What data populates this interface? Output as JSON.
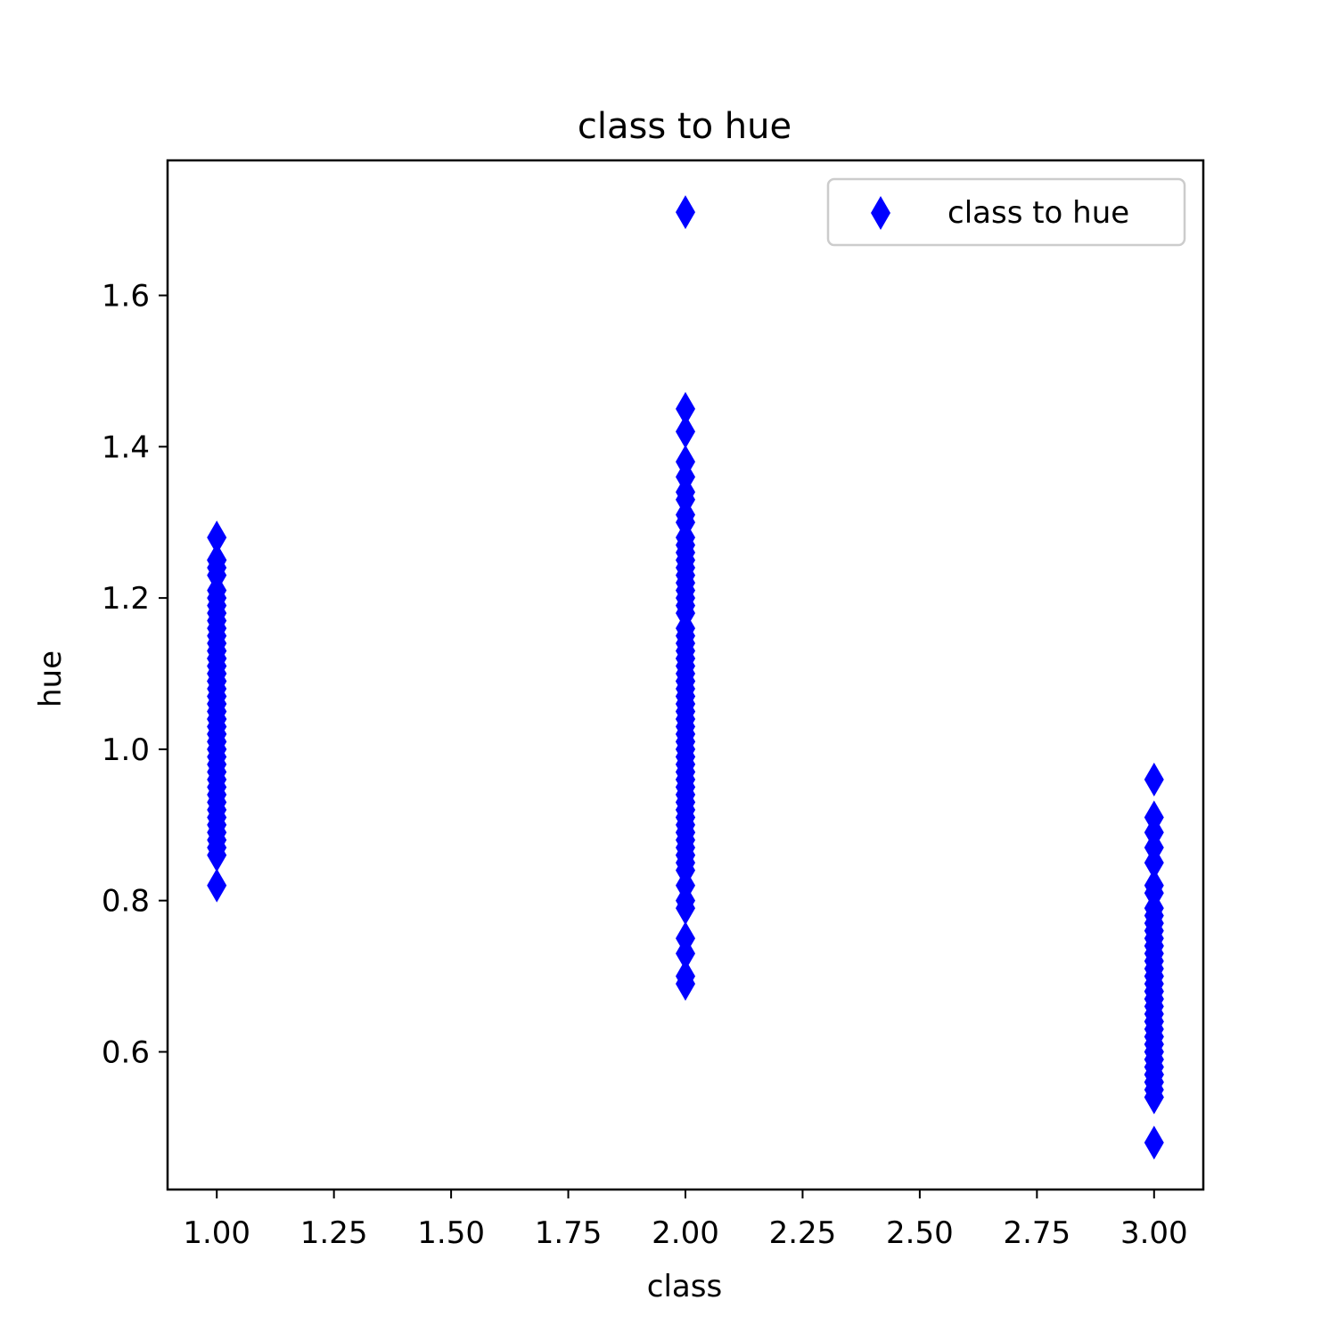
{
  "chart_data": {
    "type": "scatter",
    "title": "class to hue",
    "xlabel": "class",
    "ylabel": "hue",
    "xlim": [
      0.895,
      3.105
    ],
    "ylim": [
      0.418,
      1.7785
    ],
    "x_ticks": [
      1.0,
      1.25,
      1.5,
      1.75,
      2.0,
      2.25,
      2.5,
      2.75,
      3.0
    ],
    "x_tick_labels": [
      "1.00",
      "1.25",
      "1.50",
      "1.75",
      "2.00",
      "2.25",
      "2.50",
      "2.75",
      "3.00"
    ],
    "y_ticks": [
      0.6,
      0.8,
      1.0,
      1.2,
      1.4,
      1.6
    ],
    "y_tick_labels": [
      "0.6",
      "0.8",
      "1.0",
      "1.2",
      "1.4",
      "1.6"
    ],
    "grid": false,
    "legend_position": "top-right",
    "marker": "thin-diamond",
    "color": "#0000ff",
    "series": [
      {
        "name": "class to hue",
        "points": [
          [
            1,
            1.04
          ],
          [
            1,
            1.05
          ],
          [
            1,
            1.03
          ],
          [
            1,
            0.86
          ],
          [
            1,
            1.04
          ],
          [
            1,
            1.05
          ],
          [
            1,
            1.02
          ],
          [
            1,
            1.06
          ],
          [
            1,
            1.08
          ],
          [
            1,
            1.01
          ],
          [
            1,
            1.25
          ],
          [
            1,
            1.17
          ],
          [
            1,
            1.15
          ],
          [
            1,
            1.25
          ],
          [
            1,
            1.2
          ],
          [
            1,
            1.28
          ],
          [
            1,
            1.07
          ],
          [
            1,
            1.13
          ],
          [
            1,
            1.23
          ],
          [
            1,
            0.96
          ],
          [
            1,
            1.09
          ],
          [
            1,
            1.11
          ],
          [
            1,
            1.09
          ],
          [
            1,
            1.12
          ],
          [
            1,
            1.13
          ],
          [
            1,
            0.92
          ],
          [
            1,
            1.02
          ],
          [
            1,
            1.25
          ],
          [
            1,
            1.1
          ],
          [
            1,
            1.04
          ],
          [
            1,
            1.09
          ],
          [
            1,
            1.12
          ],
          [
            1,
            1.0
          ],
          [
            1,
            1.18
          ],
          [
            1,
            0.89
          ],
          [
            1,
            0.95
          ],
          [
            1,
            0.91
          ],
          [
            1,
            0.88
          ],
          [
            1,
            0.82
          ],
          [
            1,
            1.16
          ],
          [
            1,
            0.87
          ],
          [
            1,
            0.93
          ],
          [
            1,
            0.98
          ],
          [
            1,
            1.19
          ],
          [
            1,
            1.12
          ],
          [
            1,
            1.03
          ],
          [
            1,
            1.01
          ],
          [
            1,
            0.9
          ],
          [
            1,
            0.94
          ],
          [
            1,
            1.07
          ],
          [
            1,
            1.1
          ],
          [
            1,
            1.14
          ],
          [
            1,
            1.21
          ],
          [
            1,
            0.99
          ],
          [
            1,
            1.24
          ],
          [
            1,
            0.97
          ],
          [
            1,
            1.06
          ],
          [
            1,
            1.0
          ],
          [
            1,
            1.11
          ],
          [
            2,
            1.05
          ],
          [
            2,
            1.45
          ],
          [
            2,
            1.25
          ],
          [
            2,
            1.0
          ],
          [
            2,
            1.12
          ],
          [
            2,
            0.94
          ],
          [
            2,
            1.42
          ],
          [
            2,
            1.36
          ],
          [
            2,
            1.38
          ],
          [
            2,
            0.7
          ],
          [
            2,
            0.73
          ],
          [
            2,
            1.71
          ],
          [
            2,
            1.31
          ],
          [
            2,
            1.22
          ],
          [
            2,
            1.02
          ],
          [
            2,
            0.96
          ],
          [
            2,
            1.04
          ],
          [
            2,
            0.98
          ],
          [
            2,
            0.86
          ],
          [
            2,
            1.12
          ],
          [
            2,
            0.93
          ],
          [
            2,
            0.91
          ],
          [
            2,
            1.28
          ],
          [
            2,
            0.79
          ],
          [
            2,
            1.19
          ],
          [
            2,
            0.87
          ],
          [
            2,
            1.16
          ],
          [
            2,
            0.89
          ],
          [
            2,
            1.07
          ],
          [
            2,
            1.2
          ],
          [
            2,
            1.06
          ],
          [
            2,
            0.98
          ],
          [
            2,
            1.23
          ],
          [
            2,
            1.33
          ],
          [
            2,
            0.69
          ],
          [
            2,
            1.09
          ],
          [
            2,
            0.97
          ],
          [
            2,
            0.82
          ],
          [
            2,
            0.8
          ],
          [
            2,
            1.02
          ],
          [
            2,
            0.75
          ],
          [
            2,
            0.84
          ],
          [
            2,
            0.95
          ],
          [
            2,
            1.27
          ],
          [
            2,
            1.24
          ],
          [
            2,
            1.1
          ],
          [
            2,
            0.99
          ],
          [
            2,
            1.15
          ],
          [
            2,
            1.01
          ],
          [
            2,
            0.92
          ],
          [
            2,
            0.9
          ],
          [
            2,
            1.13
          ],
          [
            2,
            0.88
          ],
          [
            2,
            1.03
          ],
          [
            2,
            1.08
          ],
          [
            2,
            1.0
          ],
          [
            2,
            0.94
          ],
          [
            2,
            1.3
          ],
          [
            2,
            1.18
          ],
          [
            2,
            0.96
          ],
          [
            2,
            1.04
          ],
          [
            2,
            0.85
          ],
          [
            2,
            1.11
          ],
          [
            2,
            0.93
          ],
          [
            2,
            1.26
          ],
          [
            2,
            0.95
          ],
          [
            2,
            1.06
          ],
          [
            2,
            0.99
          ],
          [
            2,
            1.14
          ],
          [
            2,
            1.05
          ],
          [
            2,
            0.91
          ],
          [
            2,
            1.01
          ],
          [
            2,
            0.89
          ],
          [
            2,
            0.97
          ],
          [
            2,
            1.09
          ],
          [
            2,
            0.86
          ],
          [
            2,
            1.07
          ],
          [
            2,
            1.21
          ],
          [
            2,
            0.92
          ],
          [
            2,
            1.34
          ],
          [
            3,
            0.64
          ],
          [
            3,
            0.6
          ],
          [
            3,
            0.57
          ],
          [
            3,
            0.7
          ],
          [
            3,
            0.78
          ],
          [
            3,
            0.75
          ],
          [
            3,
            0.74
          ],
          [
            3,
            0.67
          ],
          [
            3,
            0.56
          ],
          [
            3,
            0.58
          ],
          [
            3,
            0.61
          ],
          [
            3,
            0.48
          ],
          [
            3,
            0.54
          ],
          [
            3,
            0.96
          ],
          [
            3,
            0.89
          ],
          [
            3,
            0.91
          ],
          [
            3,
            0.85
          ],
          [
            3,
            0.82
          ],
          [
            3,
            0.81
          ],
          [
            3,
            0.77
          ],
          [
            3,
            0.72
          ],
          [
            3,
            0.68
          ],
          [
            3,
            0.66
          ],
          [
            3,
            0.59
          ],
          [
            3,
            0.55
          ],
          [
            3,
            0.62
          ],
          [
            3,
            0.65
          ],
          [
            3,
            0.69
          ],
          [
            3,
            0.73
          ],
          [
            3,
            0.76
          ],
          [
            3,
            0.79
          ],
          [
            3,
            0.87
          ],
          [
            3,
            0.57
          ],
          [
            3,
            0.63
          ],
          [
            3,
            0.71
          ],
          [
            3,
            0.6
          ],
          [
            3,
            0.58
          ],
          [
            3,
            0.54
          ],
          [
            3,
            0.56
          ],
          [
            3,
            0.61
          ],
          [
            3,
            0.74
          ],
          [
            3,
            0.7
          ],
          [
            3,
            0.64
          ],
          [
            3,
            0.59
          ],
          [
            3,
            0.67
          ],
          [
            3,
            0.57
          ],
          [
            3,
            0.62
          ],
          [
            3,
            0.68
          ]
        ]
      }
    ]
  }
}
